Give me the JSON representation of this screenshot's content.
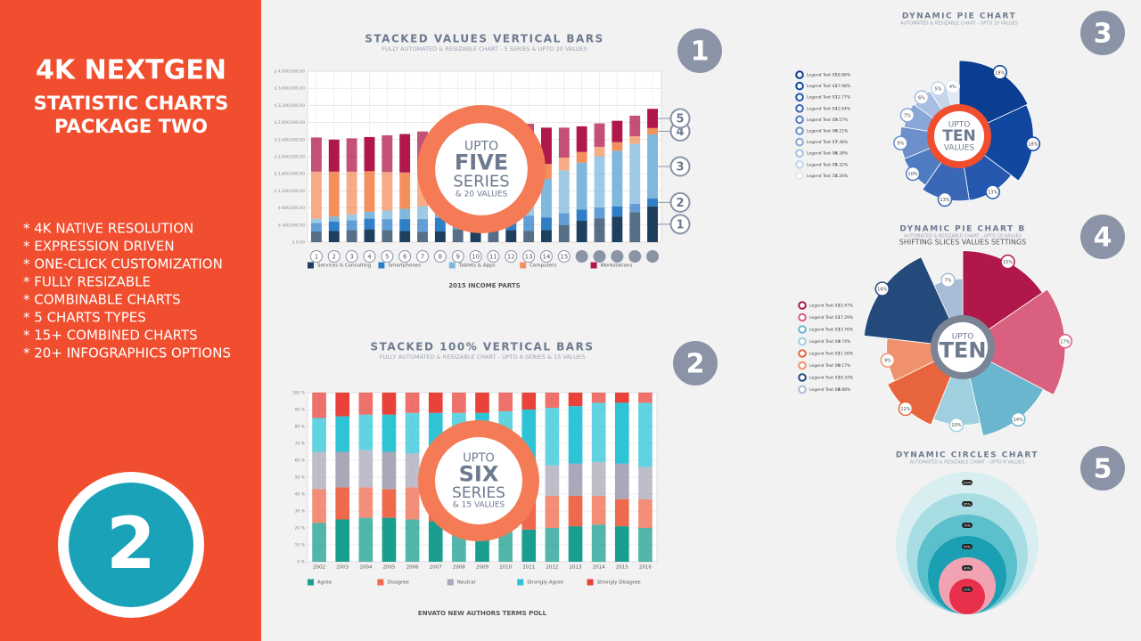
{
  "promo": {
    "title": [
      "4K NEXTGEN",
      "STATISTIC CHARTS",
      "PACKAGE TWO"
    ],
    "features": [
      "* 4K NATIVE RESOLUTION",
      "* EXPRESSION DRIVEN",
      "* ONE-CLICK CUSTOMIZATION",
      "* FULLY RESIZABLE",
      "* COMBINABLE CHARTS",
      "* 5 CHARTS TYPES",
      "* 15+ COMBINED CHARTS",
      "* 20+ INFOGRAPHICS OPTIONS"
    ],
    "badge": "2"
  },
  "chart_data": [
    {
      "type": "bar",
      "stacked": true,
      "number": "1",
      "title": "STACKED VALUES VERTICAL BARS",
      "subtitle": "FULLY AUTOMATED & RESIZABLE CHART - 5 SERIES & UPTO 20 VALUES",
      "caption": "2015 INCOME PARTS",
      "badge": [
        "UPTO",
        "FIVE",
        "SERIES",
        "& 20 VALUES"
      ],
      "category_circles": true,
      "categories": [
        "1",
        "2",
        "3",
        "4",
        "5",
        "6",
        "7",
        "8",
        "9",
        "10",
        "11",
        "12",
        "13",
        "14",
        "15",
        null,
        null,
        null,
        null,
        null
      ],
      "ylim": [
        0,
        4000000
      ],
      "yticks": [
        {
          "value": 0,
          "label": "$ 0.00"
        },
        {
          "value": 400000,
          "label": "$ 400,000.00"
        },
        {
          "value": 800000,
          "label": "$ 800,000.00"
        },
        {
          "value": 1200000,
          "label": "$ 1,200,000.00"
        },
        {
          "value": 1600000,
          "label": "$ 1,600,000.00"
        },
        {
          "value": 2000000,
          "label": "$ 2,000,000.00"
        },
        {
          "value": 2400000,
          "label": "$ 2,400,000.00"
        },
        {
          "value": 2800000,
          "label": "$ 2,800,000.00"
        },
        {
          "value": 3200000,
          "label": "$ 3,200,000.00"
        },
        {
          "value": 3600000,
          "label": "$ 3,600,000.00"
        },
        {
          "value": 4000000,
          "label": "$ 4,000,000.00"
        }
      ],
      "grid": true,
      "series_markers": [
        "1",
        "2",
        "3",
        "4",
        "5"
      ],
      "series": [
        {
          "name": "Services & Consulting",
          "color": "#1f3f5f",
          "values": [
            250000,
            260000,
            280000,
            300000,
            280000,
            260000,
            240000,
            250000,
            300000,
            320000,
            300000,
            280000,
            260000,
            280000,
            400000,
            500000,
            560000,
            600000,
            700000,
            840000
          ]
        },
        {
          "name": "Smartphones",
          "color": "#2f7fc8",
          "values": [
            200000,
            220000,
            230000,
            250000,
            260000,
            280000,
            300000,
            320000,
            350000,
            380000,
            400000,
            380000,
            360000,
            300000,
            280000,
            260000,
            250000,
            240000,
            200000,
            180000
          ]
        },
        {
          "name": "Tablets & Apps",
          "color": "#7fb8dc",
          "values": [
            100000,
            120000,
            140000,
            160000,
            200000,
            240000,
            300000,
            400000,
            500000,
            600000,
            700000,
            800000,
            850000,
            900000,
            1000000,
            1100000,
            1200000,
            1300000,
            1400000,
            1500000
          ]
        },
        {
          "name": "Computers",
          "color": "#f4905e",
          "values": [
            1100000,
            1050000,
            1000000,
            950000,
            900000,
            850000,
            800000,
            700000,
            650000,
            600000,
            500000,
            450000,
            400000,
            350000,
            300000,
            250000,
            220000,
            200000,
            180000,
            150000
          ]
        },
        {
          "name": "Workstations",
          "color": "#b0174a",
          "values": [
            800000,
            750000,
            780000,
            800000,
            860000,
            900000,
            950000,
            1000000,
            1100000,
            1000000,
            950000,
            900000,
            900000,
            850000,
            700000,
            600000,
            550000,
            500000,
            480000,
            450000
          ]
        }
      ]
    },
    {
      "type": "bar",
      "stacked": true,
      "number": "2",
      "title": "STACKED 100% VERTICAL BARS",
      "subtitle": "FULLY AUTOMATED & RESIZABLE CHART - UPTO 6 SERIES & 15 VALUES",
      "caption": "ENVATO NEW AUTHORS TERMS POLL",
      "badge": [
        "UPTO",
        "SIX",
        "SERIES",
        "& 15 VALUES"
      ],
      "categories": [
        "2002",
        "2003",
        "2004",
        "2005",
        "2006",
        "2007",
        "2008",
        "2009",
        "2010",
        "2011",
        "2012",
        "2013",
        "2014",
        "2015",
        "2016"
      ],
      "ylim": [
        0,
        100
      ],
      "yticks": [
        {
          "value": 0,
          "label": "0 %"
        },
        {
          "value": 10,
          "label": "10 %"
        },
        {
          "value": 20,
          "label": "20 %"
        },
        {
          "value": 30,
          "label": "30 %"
        },
        {
          "value": 40,
          "label": "40 %"
        },
        {
          "value": 50,
          "label": "50 %"
        },
        {
          "value": 60,
          "label": "60 %"
        },
        {
          "value": 70,
          "label": "70 %"
        },
        {
          "value": 80,
          "label": "80 %"
        },
        {
          "value": 90,
          "label": "90 %"
        },
        {
          "value": 100,
          "label": "100 %"
        }
      ],
      "grid": true,
      "series": [
        {
          "name": "Agree",
          "color": "#1a9e8f",
          "values": [
            23,
            25,
            26,
            26,
            25,
            24,
            22,
            21,
            20,
            19,
            20,
            21,
            22,
            21,
            20
          ]
        },
        {
          "name": "Disagree",
          "color": "#ef6a4c",
          "values": [
            20,
            19,
            18,
            17,
            19,
            20,
            22,
            23,
            22,
            21,
            19,
            18,
            17,
            16,
            17
          ]
        },
        {
          "name": "Neutral",
          "color": "#a8a8b8",
          "values": [
            22,
            21,
            22,
            22,
            20,
            19,
            17,
            16,
            17,
            18,
            18,
            19,
            20,
            21,
            19
          ]
        },
        {
          "name": "Strongly Agree",
          "color": "#2ec4d6",
          "values": [
            20,
            21,
            21,
            22,
            24,
            25,
            27,
            28,
            30,
            32,
            34,
            34,
            35,
            36,
            38
          ]
        },
        {
          "name": "Strongly Disagree",
          "color": "#e8423a",
          "values": [
            15,
            14,
            13,
            13,
            12,
            12,
            12,
            12,
            11,
            10,
            9,
            8,
            6,
            6,
            6
          ]
        }
      ]
    },
    {
      "type": "pie",
      "number": "3",
      "title": "DYNAMIC PIE CHART",
      "subtitle": "AUTOMATED & RESIZABLE CHART - UPTO 10 VALUES",
      "badge": [
        "UPTO",
        "TEN",
        "VALUES"
      ],
      "categories": [
        "Legend Text 01",
        "Legend Text 02",
        "Legend Text 03",
        "Legend Text 04",
        "Legend Text 05",
        "Legend Text 06",
        "Legend Text 07",
        "Legend Text 08",
        "Legend Text 09",
        "Legend Text 10"
      ],
      "values": [
        18.86,
        17.98,
        12.77,
        12.64,
        9.57,
        9.21,
        7.48,
        6.38,
        5.32,
        4.26
      ],
      "legend_labels": [
        "18.86%",
        "17.98%",
        "12.77%",
        "12.64%",
        "9.57%",
        "9.21%",
        "7.48%",
        "6.38%",
        "5.32%",
        "4.26%"
      ],
      "value_labels": [
        "19%",
        "18%",
        "13%",
        "13%",
        "10%",
        "9%",
        "7%",
        "6%",
        "5%",
        "4%"
      ],
      "colors": [
        "#0b3d91",
        "#12479f",
        "#2457ad",
        "#3a68b6",
        "#4f7bc0",
        "#6b90cb",
        "#89a7d6",
        "#a8bfe1",
        "#c6d4ea",
        "#e1e8f3"
      ]
    },
    {
      "type": "pie",
      "number": "4",
      "title": "DYNAMIC PIE CHART B",
      "subtitle": "AUTOMATED & RESIZABLE CHART - UPTO 10 VALUES",
      "note": "SHIFTING SLICES VALUES SETTINGS",
      "badge": [
        "UPTO",
        "TEN"
      ],
      "categories": [
        "Legend Text 01",
        "Legend Text 02",
        "Legend Text 03",
        "Legend Text 04",
        "Legend Text 05",
        "Legend Text 06",
        "Legend Text 07",
        "Legend Text 08"
      ],
      "values": [
        15.47,
        17.29,
        13.76,
        9.74,
        11.56,
        9.17,
        16.33,
        6.88
      ],
      "legend_labels": [
        "15.47%",
        "17.29%",
        "13.76%",
        "9.74%",
        "11.56%",
        "9.17%",
        "16.33%",
        "6.88%"
      ],
      "value_labels": [
        "15%",
        "17%",
        "14%",
        "10%",
        "12%",
        "9%",
        "16%",
        "7%"
      ],
      "colors": [
        "#b0174a",
        "#d9607f",
        "#6bb6cf",
        "#9fd0df",
        "#e8643c",
        "#f0916e",
        "#234a7a",
        "#a8bcd6"
      ]
    },
    {
      "type": "circles",
      "number": "5",
      "title": "DYNAMIC CIRCLES CHART",
      "subtitle": "AUTOMATED & RESIZABLE CHART - UPTO 6 VALUES",
      "values": [
        100,
        85,
        70,
        55,
        40,
        25
      ],
      "value_labels": [
        "100%",
        "85%",
        "70%",
        "55%",
        "40%",
        "25%"
      ],
      "colors": [
        "#d9eef1",
        "#a9dde4",
        "#5cc0cc",
        "#1a9fb3",
        "#f2a3b3",
        "#e8304a"
      ]
    }
  ]
}
